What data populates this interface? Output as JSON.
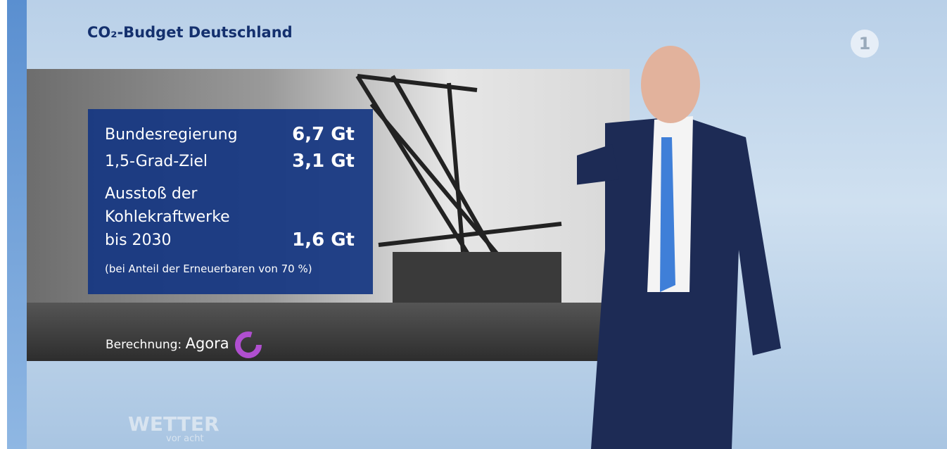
{
  "header": {
    "title": "CO₂-Budget Deutschland"
  },
  "table": {
    "rows": [
      {
        "label": [
          "Bundesregierung"
        ],
        "value": "6,7 Gt"
      },
      {
        "label": [
          "1,5-Grad-Ziel"
        ],
        "value": "3,1 Gt"
      },
      {
        "label": [
          "Ausstoß der",
          "Kohlekraftwerke",
          "bis 2030"
        ],
        "value": "1,6 Gt"
      }
    ],
    "note": "(bei Anteil der Erneuerbaren von 70 %)"
  },
  "source": {
    "label": "Berechnung:",
    "name": "Agora"
  },
  "logo": {
    "title": "WETTER",
    "subtitle": "vor acht"
  }
}
